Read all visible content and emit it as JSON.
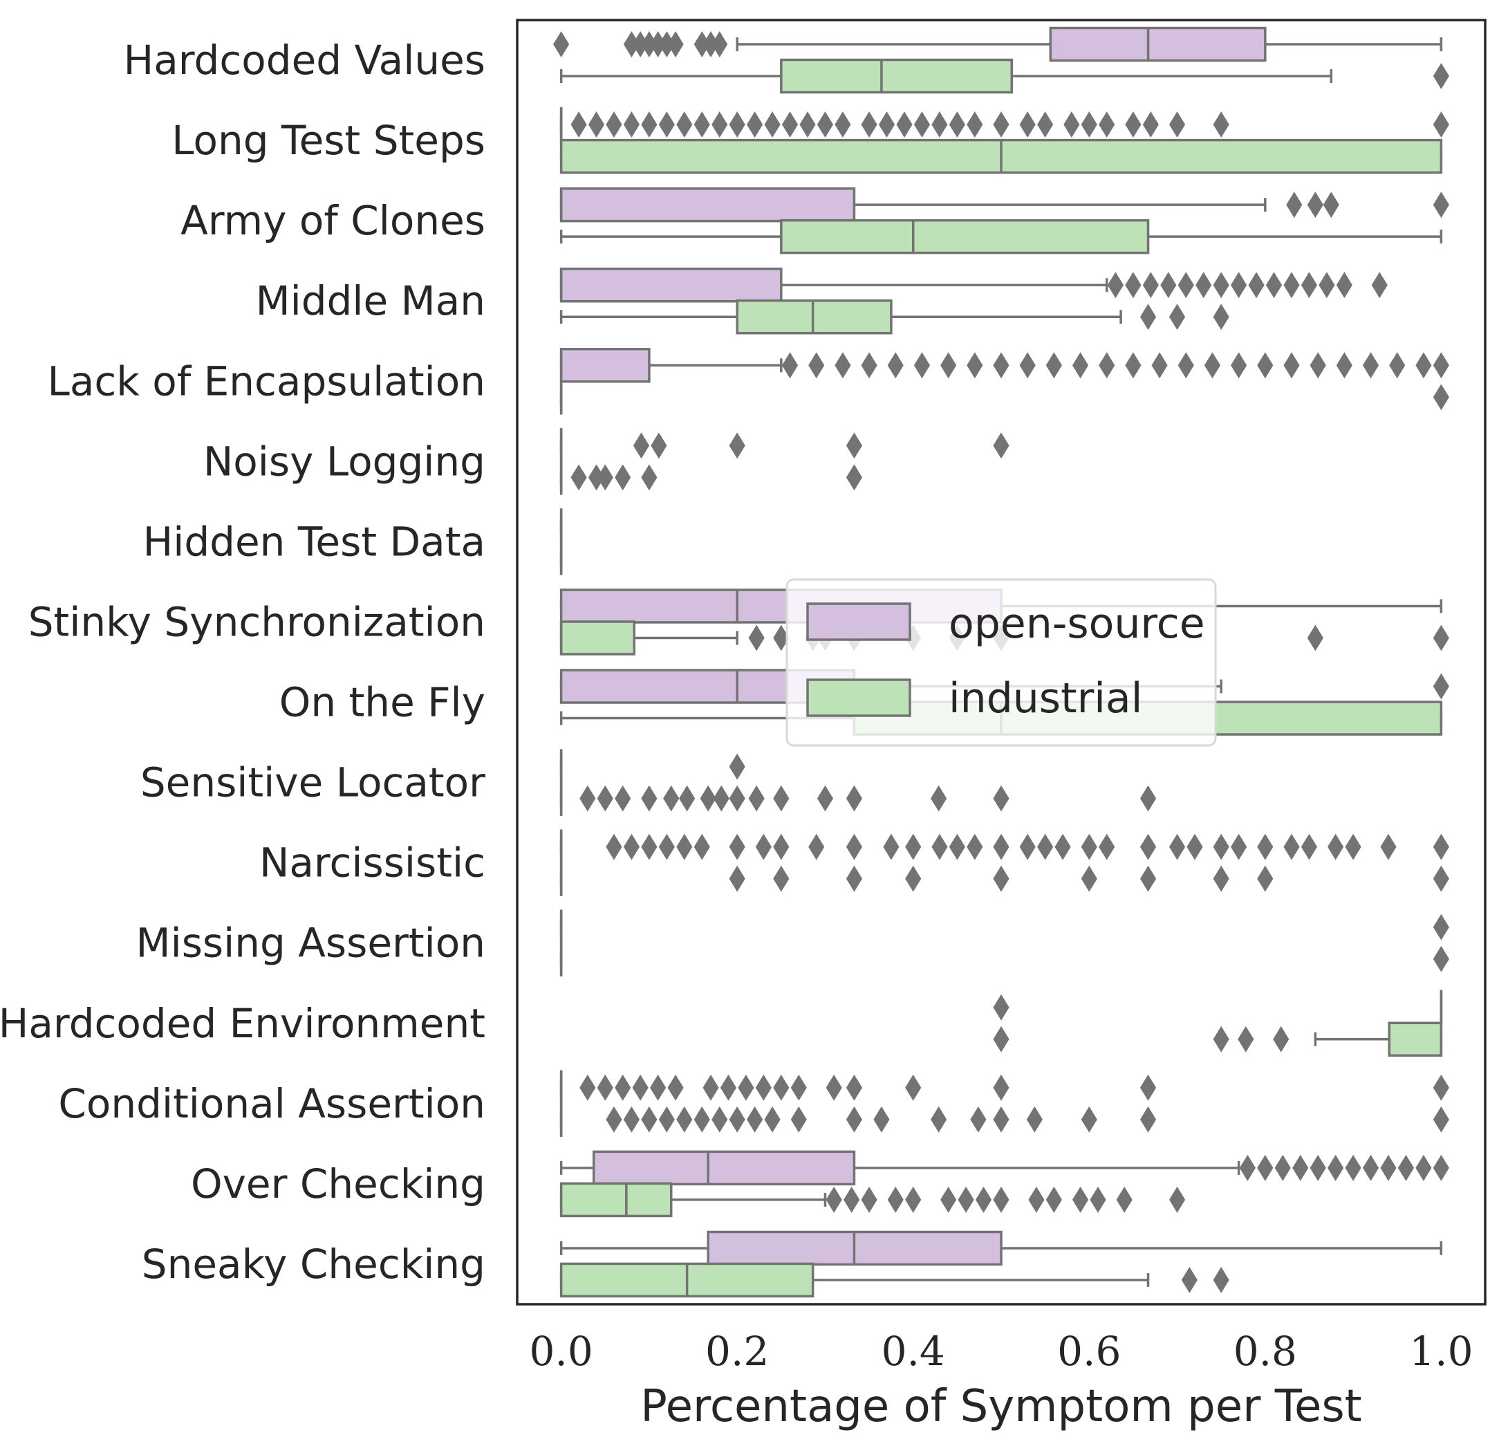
{
  "chart_data": {
    "type": "boxplot",
    "orientation": "horizontal",
    "title": "",
    "xlabel": "Percentage of Symptom per Test",
    "ylabel": "",
    "xlim": [
      -0.05,
      1.05
    ],
    "xticks": [
      0.0,
      0.2,
      0.4,
      0.6,
      0.8,
      1.0
    ],
    "xtick_labels": [
      "0.0",
      "0.2",
      "0.4",
      "0.6",
      "0.8",
      "1.0"
    ],
    "grid": false,
    "legend_position": "center-right",
    "colors": {
      "open-source": "#d4bfdf",
      "industrial": "#bde2b7",
      "edge": "#737373",
      "frame": "#262626"
    },
    "series": [
      {
        "name": "open-source"
      },
      {
        "name": "industrial"
      }
    ],
    "categories": [
      "Hardcoded Values",
      "Long Test Steps",
      "Army of Clones",
      "Middle Man",
      "Lack of Encapsulation",
      "Noisy Logging",
      "Hidden Test Data",
      "Stinky Synchronization",
      "On the Fly",
      "Sensitive Locator",
      "Narcissistic",
      "Missing Assertion",
      "Hardcoded Environment",
      "Conditional Assertion",
      "Over Checking",
      "Sneaky Checking"
    ],
    "boxes": [
      [
        {
          "min": 0.2,
          "q1": 0.556,
          "median": 0.667,
          "q3": 0.8,
          "max": 1.0,
          "outliers": [
            0.0,
            0.08,
            0.09,
            0.1,
            0.11,
            0.12,
            0.13,
            0.16,
            0.17,
            0.18
          ]
        },
        {
          "min": 0.0,
          "q1": 0.25,
          "median": 0.364,
          "q3": 0.512,
          "max": 0.875,
          "outliers": [
            1.0
          ]
        }
      ],
      [
        {
          "min": 0.0,
          "q1": 0.0,
          "median": 0.0,
          "q3": 0.0,
          "max": 0.0,
          "outliers": [
            0.02,
            0.04,
            0.06,
            0.08,
            0.1,
            0.12,
            0.14,
            0.16,
            0.18,
            0.2,
            0.22,
            0.24,
            0.26,
            0.28,
            0.3,
            0.32,
            0.35,
            0.37,
            0.39,
            0.41,
            0.43,
            0.45,
            0.47,
            0.5,
            0.53,
            0.55,
            0.58,
            0.6,
            0.62,
            0.65,
            0.67,
            0.7,
            0.75,
            1.0
          ]
        },
        {
          "min": 0.0,
          "q1": 0.0,
          "median": 0.5,
          "q3": 1.0,
          "max": 1.0,
          "outliers": []
        }
      ],
      [
        {
          "min": 0.0,
          "q1": 0.0,
          "median": 0.0,
          "q3": 0.333,
          "max": 0.8,
          "outliers": [
            0.833,
            0.857,
            0.875,
            1.0
          ]
        },
        {
          "min": 0.0,
          "q1": 0.25,
          "median": 0.4,
          "q3": 0.667,
          "max": 1.0,
          "outliers": []
        }
      ],
      [
        {
          "min": 0.0,
          "q1": 0.0,
          "median": 0.0,
          "q3": 0.25,
          "max": 0.62,
          "outliers": [
            0.63,
            0.65,
            0.67,
            0.69,
            0.71,
            0.73,
            0.75,
            0.77,
            0.79,
            0.81,
            0.83,
            0.85,
            0.87,
            0.89,
            0.93
          ]
        },
        {
          "min": 0.0,
          "q1": 0.2,
          "median": 0.286,
          "q3": 0.375,
          "max": 0.636,
          "outliers": [
            0.667,
            0.7,
            0.75
          ]
        }
      ],
      [
        {
          "min": 0.0,
          "q1": 0.0,
          "median": 0.0,
          "q3": 0.1,
          "max": 0.25,
          "outliers": [
            0.26,
            0.29,
            0.32,
            0.35,
            0.38,
            0.41,
            0.44,
            0.47,
            0.5,
            0.53,
            0.56,
            0.59,
            0.62,
            0.65,
            0.68,
            0.71,
            0.74,
            0.77,
            0.8,
            0.83,
            0.86,
            0.89,
            0.92,
            0.95,
            0.98,
            1.0
          ]
        },
        {
          "min": 0.0,
          "q1": 0.0,
          "median": 0.0,
          "q3": 0.0,
          "max": 0.0,
          "outliers": [
            1.0
          ]
        }
      ],
      [
        {
          "min": 0.0,
          "q1": 0.0,
          "median": 0.0,
          "q3": 0.0,
          "max": 0.0,
          "outliers": [
            0.091,
            0.111,
            0.2,
            0.333,
            0.5
          ]
        },
        {
          "min": 0.0,
          "q1": 0.0,
          "median": 0.0,
          "q3": 0.0,
          "max": 0.0,
          "outliers": [
            0.02,
            0.04,
            0.05,
            0.07,
            0.1,
            0.333
          ]
        }
      ],
      [
        {
          "min": 0.0,
          "q1": 0.0,
          "median": 0.0,
          "q3": 0.0,
          "max": 0.0,
          "outliers": []
        },
        {
          "min": 0.0,
          "q1": 0.0,
          "median": 0.0,
          "q3": 0.0,
          "max": 0.0,
          "outliers": []
        }
      ],
      [
        {
          "min": 0.0,
          "q1": 0.0,
          "median": 0.2,
          "q3": 0.5,
          "max": 1.0,
          "outliers": []
        },
        {
          "min": 0.0,
          "q1": 0.0,
          "median": 0.0,
          "q3": 0.083,
          "max": 0.2,
          "outliers": [
            0.222,
            0.25,
            0.286,
            0.3,
            0.333,
            0.4,
            0.45,
            0.5,
            0.857,
            1.0
          ]
        }
      ],
      [
        {
          "min": 0.0,
          "q1": 0.0,
          "median": 0.2,
          "q3": 0.333,
          "max": 0.75,
          "outliers": [
            1.0
          ]
        },
        {
          "min": 0.0,
          "q1": 0.333,
          "median": 0.5,
          "q3": 1.0,
          "max": 1.0,
          "outliers": []
        }
      ],
      [
        {
          "min": 0.0,
          "q1": 0.0,
          "median": 0.0,
          "q3": 0.0,
          "max": 0.0,
          "outliers": [
            0.2
          ]
        },
        {
          "min": 0.0,
          "q1": 0.0,
          "median": 0.0,
          "q3": 0.0,
          "max": 0.0,
          "outliers": [
            0.03,
            0.05,
            0.07,
            0.1,
            0.125,
            0.143,
            0.167,
            0.182,
            0.2,
            0.222,
            0.25,
            0.3,
            0.333,
            0.429,
            0.5,
            0.667
          ]
        }
      ],
      [
        {
          "min": 0.0,
          "q1": 0.0,
          "median": 0.0,
          "q3": 0.0,
          "max": 0.0,
          "outliers": [
            0.06,
            0.08,
            0.1,
            0.12,
            0.14,
            0.16,
            0.2,
            0.23,
            0.25,
            0.29,
            0.333,
            0.375,
            0.4,
            0.43,
            0.45,
            0.47,
            0.5,
            0.53,
            0.55,
            0.57,
            0.6,
            0.62,
            0.667,
            0.7,
            0.72,
            0.75,
            0.77,
            0.8,
            0.83,
            0.85,
            0.88,
            0.9,
            0.94,
            1.0
          ]
        },
        {
          "min": 0.0,
          "q1": 0.0,
          "median": 0.0,
          "q3": 0.0,
          "max": 0.0,
          "outliers": [
            0.2,
            0.25,
            0.333,
            0.4,
            0.5,
            0.6,
            0.667,
            0.75,
            0.8,
            1.0
          ]
        }
      ],
      [
        {
          "min": 0.0,
          "q1": 0.0,
          "median": 0.0,
          "q3": 0.0,
          "max": 0.0,
          "outliers": [
            1.0
          ]
        },
        {
          "min": 0.0,
          "q1": 0.0,
          "median": 0.0,
          "q3": 0.0,
          "max": 0.0,
          "outliers": [
            1.0
          ]
        }
      ],
      [
        {
          "min": 1.0,
          "q1": 1.0,
          "median": 1.0,
          "q3": 1.0,
          "max": 1.0,
          "outliers": [
            0.5
          ]
        },
        {
          "min": 0.857,
          "q1": 0.941,
          "median": 1.0,
          "q3": 1.0,
          "max": 1.0,
          "outliers": [
            0.5,
            0.75,
            0.778,
            0.818
          ]
        }
      ],
      [
        {
          "min": 0.0,
          "q1": 0.0,
          "median": 0.0,
          "q3": 0.0,
          "max": 0.0,
          "outliers": [
            0.03,
            0.05,
            0.07,
            0.09,
            0.11,
            0.13,
            0.17,
            0.19,
            0.21,
            0.23,
            0.25,
            0.27,
            0.31,
            0.333,
            0.4,
            0.5,
            0.667,
            1.0
          ]
        },
        {
          "min": 0.0,
          "q1": 0.0,
          "median": 0.0,
          "q3": 0.0,
          "max": 0.0,
          "outliers": [
            0.06,
            0.08,
            0.1,
            0.12,
            0.14,
            0.16,
            0.18,
            0.2,
            0.22,
            0.24,
            0.27,
            0.333,
            0.364,
            0.429,
            0.474,
            0.5,
            0.538,
            0.6,
            0.667,
            1.0
          ]
        }
      ],
      [
        {
          "min": 0.0,
          "q1": 0.037,
          "median": 0.167,
          "q3": 0.333,
          "max": 0.77,
          "outliers": [
            0.78,
            0.8,
            0.82,
            0.84,
            0.86,
            0.88,
            0.9,
            0.92,
            0.94,
            0.96,
            0.98,
            1.0
          ]
        },
        {
          "min": 0.0,
          "q1": 0.0,
          "median": 0.074,
          "q3": 0.125,
          "max": 0.3,
          "outliers": [
            0.31,
            0.33,
            0.35,
            0.38,
            0.4,
            0.44,
            0.46,
            0.48,
            0.5,
            0.54,
            0.56,
            0.59,
            0.61,
            0.64,
            0.7
          ]
        }
      ],
      [
        {
          "min": 0.0,
          "q1": 0.167,
          "median": 0.333,
          "q3": 0.5,
          "max": 1.0,
          "outliers": []
        },
        {
          "min": 0.0,
          "q1": 0.0,
          "median": 0.143,
          "q3": 0.286,
          "max": 0.667,
          "outliers": [
            0.714,
            0.75
          ]
        }
      ]
    ]
  }
}
